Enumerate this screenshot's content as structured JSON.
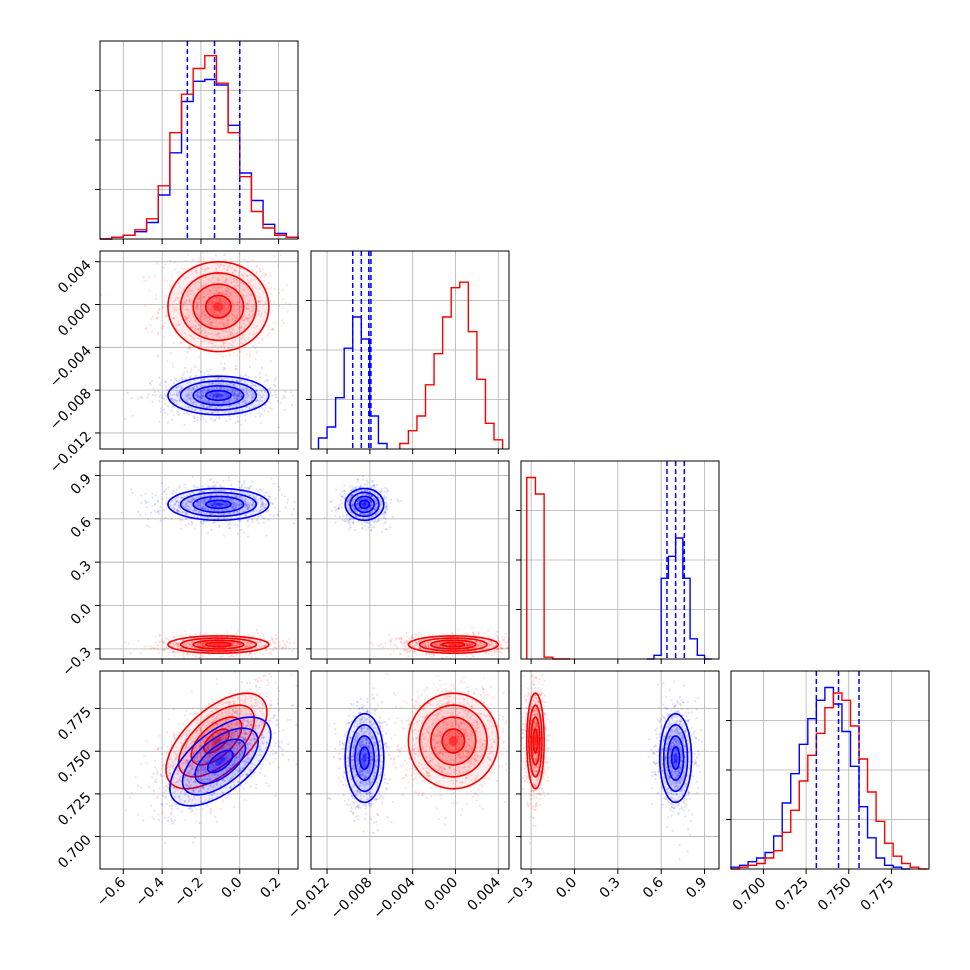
{
  "chart_data": [
    {
      "type": "histogram",
      "panel": "diag-0",
      "x_range": [
        -0.72,
        0.3
      ],
      "xticks": [
        "−0.6",
        "−0.4",
        "−0.2",
        "0.0",
        "0.2"
      ],
      "quantile_lines": [
        -0.27,
        -0.13,
        0.0
      ],
      "series": [
        {
          "name": "blue",
          "color": "#0000ff",
          "bin_edges": [
            -0.72,
            -0.66,
            -0.6,
            -0.54,
            -0.48,
            -0.42,
            -0.36,
            -0.3,
            -0.24,
            -0.18,
            -0.12,
            -0.06,
            0.0,
            0.06,
            0.12,
            0.18,
            0.24,
            0.3
          ],
          "heights": [
            0.0,
            0.01,
            0.02,
            0.04,
            0.09,
            0.24,
            0.47,
            0.75,
            0.86,
            0.87,
            0.84,
            0.62,
            0.36,
            0.21,
            0.08,
            0.03,
            0.01
          ]
        },
        {
          "name": "red",
          "color": "#ff0000",
          "bin_edges": [
            -0.72,
            -0.66,
            -0.6,
            -0.54,
            -0.48,
            -0.42,
            -0.36,
            -0.3,
            -0.24,
            -0.18,
            -0.12,
            -0.06,
            0.0,
            0.06,
            0.12,
            0.18,
            0.24,
            0.3
          ],
          "heights": [
            0.0,
            0.01,
            0.02,
            0.05,
            0.11,
            0.29,
            0.58,
            0.79,
            0.93,
            1.0,
            0.85,
            0.58,
            0.34,
            0.15,
            0.06,
            0.02,
            0.01
          ]
        }
      ]
    },
    {
      "type": "histogram",
      "panel": "diag-1",
      "x_range": [
        -0.0135,
        0.005
      ],
      "xticks": [
        "−0.012",
        "−0.008",
        "−0.004",
        "0.000",
        "0.004"
      ],
      "yticks_faint": true,
      "quantile_lines": [
        -0.0096,
        -0.0088,
        -0.0081,
        -0.0079
      ],
      "series": [
        {
          "name": "blue",
          "color": "#0000ff",
          "bin_edges": [
            -0.0128,
            -0.012,
            -0.0112,
            -0.0104,
            -0.0096,
            -0.0088,
            -0.008,
            -0.0072,
            -0.0064
          ],
          "heights": [
            0.06,
            0.12,
            0.28,
            0.55,
            0.72,
            0.6,
            0.18,
            0.03
          ]
        },
        {
          "name": "red",
          "color": "#ff0000",
          "bin_edges": [
            -0.0052,
            -0.0044,
            -0.0036,
            -0.0028,
            -0.002,
            -0.0012,
            -0.0004,
            0.0004,
            0.0012,
            0.002,
            0.0028,
            0.0036,
            0.0044
          ],
          "heights": [
            0.03,
            0.1,
            0.18,
            0.35,
            0.52,
            0.72,
            0.88,
            0.91,
            0.64,
            0.38,
            0.14,
            0.05
          ]
        }
      ]
    },
    {
      "type": "histogram",
      "panel": "diag-2",
      "x_range": [
        -0.37,
        1.0
      ],
      "xticks": [
        "−0.3",
        "0.0",
        "0.3",
        "0.6",
        "0.9"
      ],
      "quantile_lines": [
        0.64,
        0.7,
        0.76
      ],
      "series": [
        {
          "name": "blue",
          "color": "#0000ff",
          "bin_edges": [
            0.5,
            0.55,
            0.6,
            0.65,
            0.7,
            0.75,
            0.8,
            0.85,
            0.9,
            0.95
          ],
          "heights": [
            0.0,
            0.02,
            0.44,
            0.56,
            0.66,
            0.44,
            0.11,
            0.02,
            0.0
          ]
        },
        {
          "name": "red",
          "color": "#ff0000",
          "bin_edges": [
            -0.33,
            -0.27,
            -0.21,
            -0.15,
            -0.09,
            -0.03
          ],
          "heights": [
            0.99,
            0.9,
            0.01,
            0.0,
            0.0
          ]
        }
      ]
    },
    {
      "type": "histogram",
      "panel": "diag-3",
      "x_range": [
        0.681,
        0.797
      ],
      "xticks": [
        "0.700",
        "0.725",
        "0.750",
        "0.775"
      ],
      "quantile_lines": [
        0.731,
        0.744,
        0.756
      ],
      "series": [
        {
          "name": "blue",
          "color": "#0000ff",
          "bin_edges": [
            0.681,
            0.686,
            0.691,
            0.696,
            0.701,
            0.706,
            0.711,
            0.716,
            0.721,
            0.726,
            0.731,
            0.736,
            0.741,
            0.746,
            0.751,
            0.756,
            0.761,
            0.766,
            0.771,
            0.776,
            0.781,
            0.786
          ],
          "heights": [
            0.01,
            0.02,
            0.04,
            0.06,
            0.09,
            0.18,
            0.36,
            0.52,
            0.68,
            0.82,
            0.92,
            0.99,
            0.9,
            0.75,
            0.56,
            0.34,
            0.17,
            0.06,
            0.02,
            0.01,
            0.0
          ]
        },
        {
          "name": "red",
          "color": "#ff0000",
          "bin_edges": [
            0.681,
            0.686,
            0.691,
            0.696,
            0.701,
            0.706,
            0.711,
            0.716,
            0.721,
            0.726,
            0.731,
            0.736,
            0.741,
            0.746,
            0.751,
            0.756,
            0.761,
            0.766,
            0.771,
            0.776,
            0.781,
            0.786,
            0.791,
            0.796
          ],
          "heights": [
            0.0,
            0.01,
            0.02,
            0.03,
            0.06,
            0.1,
            0.2,
            0.32,
            0.48,
            0.62,
            0.74,
            0.88,
            0.96,
            0.92,
            0.78,
            0.6,
            0.42,
            0.26,
            0.14,
            0.07,
            0.03,
            0.01,
            0.0
          ]
        }
      ]
    },
    {
      "type": "contour-scatter",
      "panel": "2d-1-0",
      "x_range": [
        -0.72,
        0.3
      ],
      "y_range": [
        -0.0135,
        0.005
      ],
      "yticks": [
        "0.004",
        "0.000",
        "−0.004",
        "−0.008",
        "−0.012"
      ],
      "series": [
        {
          "name": "red",
          "color": "#ff0000",
          "center": [
            -0.11,
            -0.0002
          ],
          "sigma": [
            0.13,
            0.0021
          ],
          "corr": 0.0
        },
        {
          "name": "blue",
          "color": "#0000ff",
          "center": [
            -0.11,
            -0.0085
          ],
          "sigma": [
            0.13,
            0.0009
          ],
          "corr": 0.0
        }
      ]
    },
    {
      "type": "contour-scatter",
      "panel": "2d-2-0",
      "x_range": [
        -0.72,
        0.3
      ],
      "y_range": [
        -0.37,
        1.0
      ],
      "yticks": [
        "0.9",
        "0.6",
        "0.3",
        "0.0",
        "−0.3"
      ],
      "series": [
        {
          "name": "red",
          "color": "#ff0000",
          "center": [
            -0.11,
            -0.27
          ],
          "sigma": [
            0.13,
            0.03
          ],
          "corr": 0.0
        },
        {
          "name": "blue",
          "color": "#0000ff",
          "center": [
            -0.11,
            0.7
          ],
          "sigma": [
            0.13,
            0.055
          ],
          "corr": 0.0
        }
      ]
    },
    {
      "type": "contour-scatter",
      "panel": "2d-2-1",
      "x_range": [
        -0.0135,
        0.005
      ],
      "y_range": [
        -0.37,
        1.0
      ],
      "series": [
        {
          "name": "blue",
          "color": "#0000ff",
          "center": [
            -0.0085,
            0.7
          ],
          "sigma": [
            0.0009,
            0.055
          ],
          "corr": 0.0
        },
        {
          "name": "red",
          "color": "#ff0000",
          "center": [
            -0.0002,
            -0.27
          ],
          "sigma": [
            0.0021,
            0.03
          ],
          "corr": 0.0
        }
      ]
    },
    {
      "type": "contour-scatter",
      "panel": "2d-3-0",
      "x_range": [
        -0.72,
        0.3
      ],
      "y_range": [
        0.681,
        0.797
      ],
      "yticks": [
        "0.775",
        "0.750",
        "0.725",
        "0.700"
      ],
      "series": [
        {
          "name": "red",
          "color": "#ff0000",
          "center": [
            -0.12,
            0.756
          ],
          "sigma": [
            0.13,
            0.014
          ],
          "corr": 0.6
        },
        {
          "name": "blue",
          "color": "#0000ff",
          "center": [
            -0.1,
            0.744
          ],
          "sigma": [
            0.13,
            0.013
          ],
          "corr": 0.6
        }
      ]
    },
    {
      "type": "contour-scatter",
      "panel": "2d-3-1",
      "x_range": [
        -0.0135,
        0.005
      ],
      "y_range": [
        0.681,
        0.797
      ],
      "series": [
        {
          "name": "blue",
          "color": "#0000ff",
          "center": [
            -0.0085,
            0.746
          ],
          "sigma": [
            0.0009,
            0.013
          ],
          "corr": 0.0
        },
        {
          "name": "red",
          "color": "#ff0000",
          "center": [
            -0.0002,
            0.756
          ],
          "sigma": [
            0.0021,
            0.014
          ],
          "corr": 0.0
        }
      ]
    },
    {
      "type": "contour-scatter",
      "panel": "2d-3-2",
      "x_range": [
        -0.37,
        1.0
      ],
      "y_range": [
        0.681,
        0.797
      ],
      "series": [
        {
          "name": "red",
          "color": "#ff0000",
          "center": [
            -0.27,
            0.756
          ],
          "sigma": [
            0.03,
            0.014
          ],
          "corr": 0.0
        },
        {
          "name": "blue",
          "color": "#0000ff",
          "center": [
            0.7,
            0.746
          ],
          "sigma": [
            0.055,
            0.013
          ],
          "corr": 0.0
        }
      ]
    }
  ]
}
